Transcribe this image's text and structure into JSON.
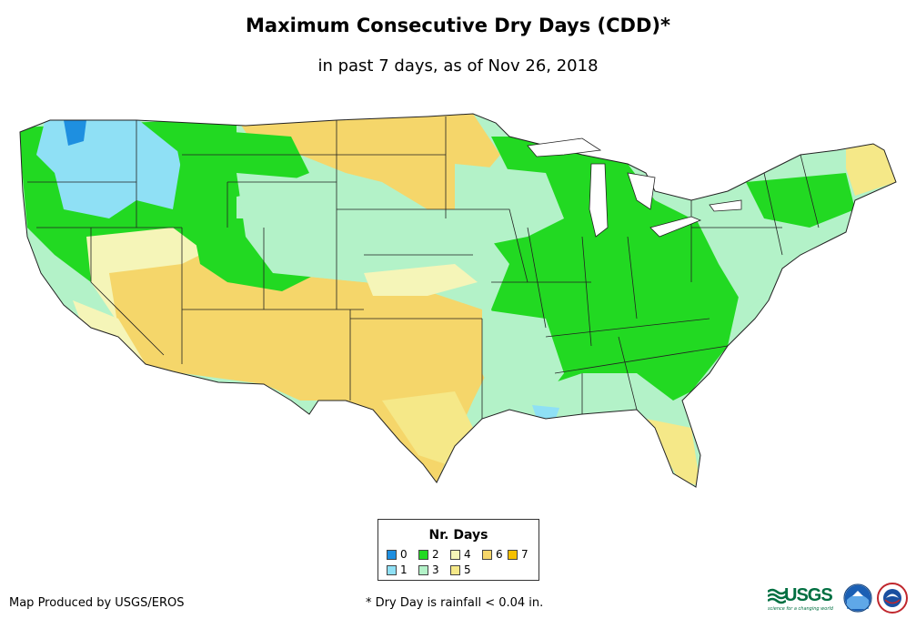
{
  "header": {
    "title": "Maximum Consecutive Dry Days (CDD)*",
    "subtitle": "in past 7 days, as of Nov 26, 2018"
  },
  "legend": {
    "title": "Nr. Days",
    "items": [
      {
        "label": "0",
        "color": "#1e8fe0"
      },
      {
        "label": "1",
        "color": "#8fe0f5"
      },
      {
        "label": "2",
        "color": "#22d922"
      },
      {
        "label": "3",
        "color": "#b3f2c8"
      },
      {
        "label": "4",
        "color": "#f5f5b8"
      },
      {
        "label": "5",
        "color": "#f5e888"
      },
      {
        "label": "6",
        "color": "#f5d66a"
      },
      {
        "label": "7",
        "color": "#f5c000"
      }
    ]
  },
  "footer": {
    "credit": "Map Produced by USGS/EROS",
    "footnote": "* Dry Day is rainfall < 0.04 in.",
    "usgs_logo": "USGS",
    "usgs_tagline": "science for a changing world",
    "logo_icons": [
      "usgs-logo-icon",
      "noaa-logo-icon",
      "nws-logo-icon"
    ]
  }
}
